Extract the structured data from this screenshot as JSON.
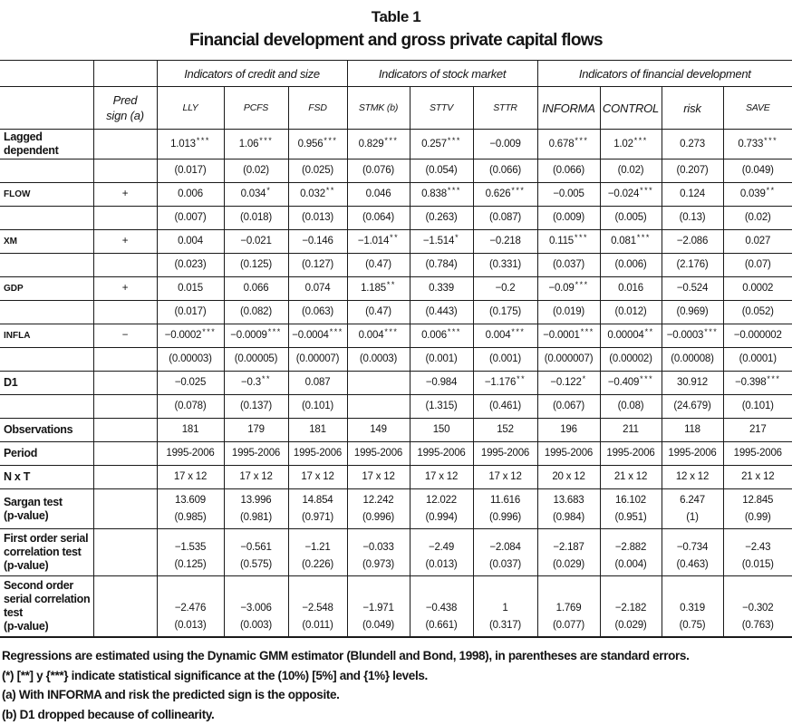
{
  "title": "Table 1",
  "subtitle": "Financial development and gross private capital flows",
  "table": {
    "groups": [
      {
        "label": "Indicators of credit and size"
      },
      {
        "label": "Indicators of stock market"
      },
      {
        "label": "Indicators of financial development"
      }
    ],
    "pred_header": "Pred sign (a)",
    "columns": [
      "LLY",
      "PCFS",
      "FSD",
      "STMK (b)",
      "STTV",
      "STTR",
      "INFORMA",
      "CONTROL",
      "risk",
      "SAVE"
    ],
    "coef_rows": [
      {
        "label": "Lagged dependent",
        "pred": "",
        "coef": [
          "1.013***",
          "1.06***",
          "0.956***",
          "0.829***",
          "0.257***",
          "−0.009",
          "0.678***",
          "1.02***",
          "0.273",
          "0.733***"
        ],
        "se": [
          "(0.017)",
          "(0.02)",
          "(0.025)",
          "(0.076)",
          "(0.054)",
          "(0.066)",
          "(0.066)",
          "(0.02)",
          "(0.207)",
          "(0.049)"
        ]
      },
      {
        "label": "FLOW",
        "pred": "+",
        "coef": [
          "0.006",
          "0.034*",
          "0.032**",
          "0.046",
          "0.838***",
          "0.626***",
          "−0.005",
          "−0.024***",
          "0.124",
          "0.039**"
        ],
        "se": [
          "(0.007)",
          "(0.018)",
          "(0.013)",
          "(0.064)",
          "(0.263)",
          "(0.087)",
          "(0.009)",
          "(0.005)",
          "(0.13)",
          "(0.02)"
        ]
      },
      {
        "label": "XM",
        "pred": "+",
        "coef": [
          "0.004",
          "−0.021",
          "−0.146",
          "−1.014**",
          "−1.514*",
          "−0.218",
          "0.115***",
          "0.081***",
          "−2.086",
          "0.027"
        ],
        "se": [
          "(0.023)",
          "(0.125)",
          "(0.127)",
          "(0.47)",
          "(0.784)",
          "(0.331)",
          "(0.037)",
          "(0.006)",
          "(2.176)",
          "(0.07)"
        ]
      },
      {
        "label": "GDP",
        "pred": "+",
        "coef": [
          "0.015",
          "0.066",
          "0.074",
          "1.185**",
          "0.339",
          "−0.2",
          "−0.09***",
          "0.016",
          "−0.524",
          "0.0002"
        ],
        "se": [
          "(0.017)",
          "(0.082)",
          "(0.063)",
          "(0.47)",
          "(0.443)",
          "(0.175)",
          "(0.019)",
          "(0.012)",
          "(0.969)",
          "(0.052)"
        ]
      },
      {
        "label": "INFLA",
        "pred": "−",
        "coef": [
          "−0.0002***",
          "−0.0009***",
          "−0.0004***",
          "0.004***",
          "0.006***",
          "0.004***",
          "−0.0001***",
          "0.00004**",
          "−0.0003***",
          "−0.000002"
        ],
        "se": [
          "(0.00003)",
          "(0.00005)",
          "(0.00007)",
          "(0.0003)",
          "(0.001)",
          "(0.001)",
          "(0.000007)",
          "(0.00002)",
          "(0.00008)",
          "(0.0001)"
        ]
      },
      {
        "label": "D1",
        "pred": "",
        "coef": [
          "−0.025",
          "−0.3**",
          "0.087",
          "",
          "−0.984",
          "−1.176**",
          "−0.122*",
          "−0.409***",
          "30.912",
          "−0.398***"
        ],
        "se": [
          "(0.078)",
          "(0.137)",
          "(0.101)",
          "",
          "(1.315)",
          "(0.461)",
          "(0.067)",
          "(0.08)",
          "(24.679)",
          "(0.101)"
        ]
      }
    ],
    "stat_rows": [
      {
        "label": "Observations",
        "values": [
          "181",
          "179",
          "181",
          "149",
          "150",
          "152",
          "196",
          "211",
          "118",
          "217"
        ]
      },
      {
        "label": "Period",
        "values": [
          "1995-2006",
          "1995-2006",
          "1995-2006",
          "1995-2006",
          "1995-2006",
          "1995-2006",
          "1995-2006",
          "1995-2006",
          "1995-2006",
          "1995-2006"
        ]
      },
      {
        "label": "N x T",
        "values": [
          "17 x 12",
          "17 x 12",
          "17 x 12",
          "17 x 12",
          "17 x 12",
          "17 x 12",
          "20 x 12",
          "21 x 12",
          "12 x 12",
          "21 x 12"
        ]
      },
      {
        "label": "Sargan test",
        "sublabel": "(p-value)",
        "values": [
          "13.609",
          "13.996",
          "14.854",
          "12.242",
          "12.022",
          "11.616",
          "13.683",
          "16.102",
          "6.247",
          "12.845"
        ],
        "pvalues": [
          "(0.985)",
          "(0.981)",
          "(0.971)",
          "(0.996)",
          "(0.994)",
          "(0.996)",
          "(0.984)",
          "(0.951)",
          "(1)",
          "(0.99)"
        ]
      },
      {
        "label": "First order serial correlation test",
        "sublabel": "(p-value)",
        "values": [
          "−1.535",
          "−0.561",
          "−1.21",
          "−0.033",
          "−2.49",
          "−2.084",
          "−2.187",
          "−2.882",
          "−0.734",
          "−2.43"
        ],
        "pvalues": [
          "(0.125)",
          "(0.575)",
          "(0.226)",
          "(0.973)",
          "(0.013)",
          "(0.037)",
          "(0.029)",
          "(0.004)",
          "(0.463)",
          "(0.015)"
        ]
      },
      {
        "label": "Second order serial correlation test",
        "sublabel": "(p-value)",
        "values": [
          "−2.476",
          "−3.006",
          "−2.548",
          "−1.971",
          "−0.438",
          "1",
          "1.769",
          "−2.182",
          "0.319",
          "−0.302"
        ],
        "pvalues": [
          "(0.013)",
          "(0.003)",
          "(0.011)",
          "(0.049)",
          "(0.661)",
          "(0.317)",
          "(0.077)",
          "(0.029)",
          "(0.75)",
          "(0.763)"
        ]
      }
    ]
  },
  "footnotes": [
    "Regressions are estimated using the Dynamic GMM estimator (Blundell and Bond, 1998), in parentheses are standard errors.",
    "(*) [**] y {***} indicate statistical significance at the (10%) [5%] and {1%} levels.",
    "(a) With INFORMA and risk the predicted sign is the opposite.",
    "(b) D1 dropped because of collinearity."
  ]
}
